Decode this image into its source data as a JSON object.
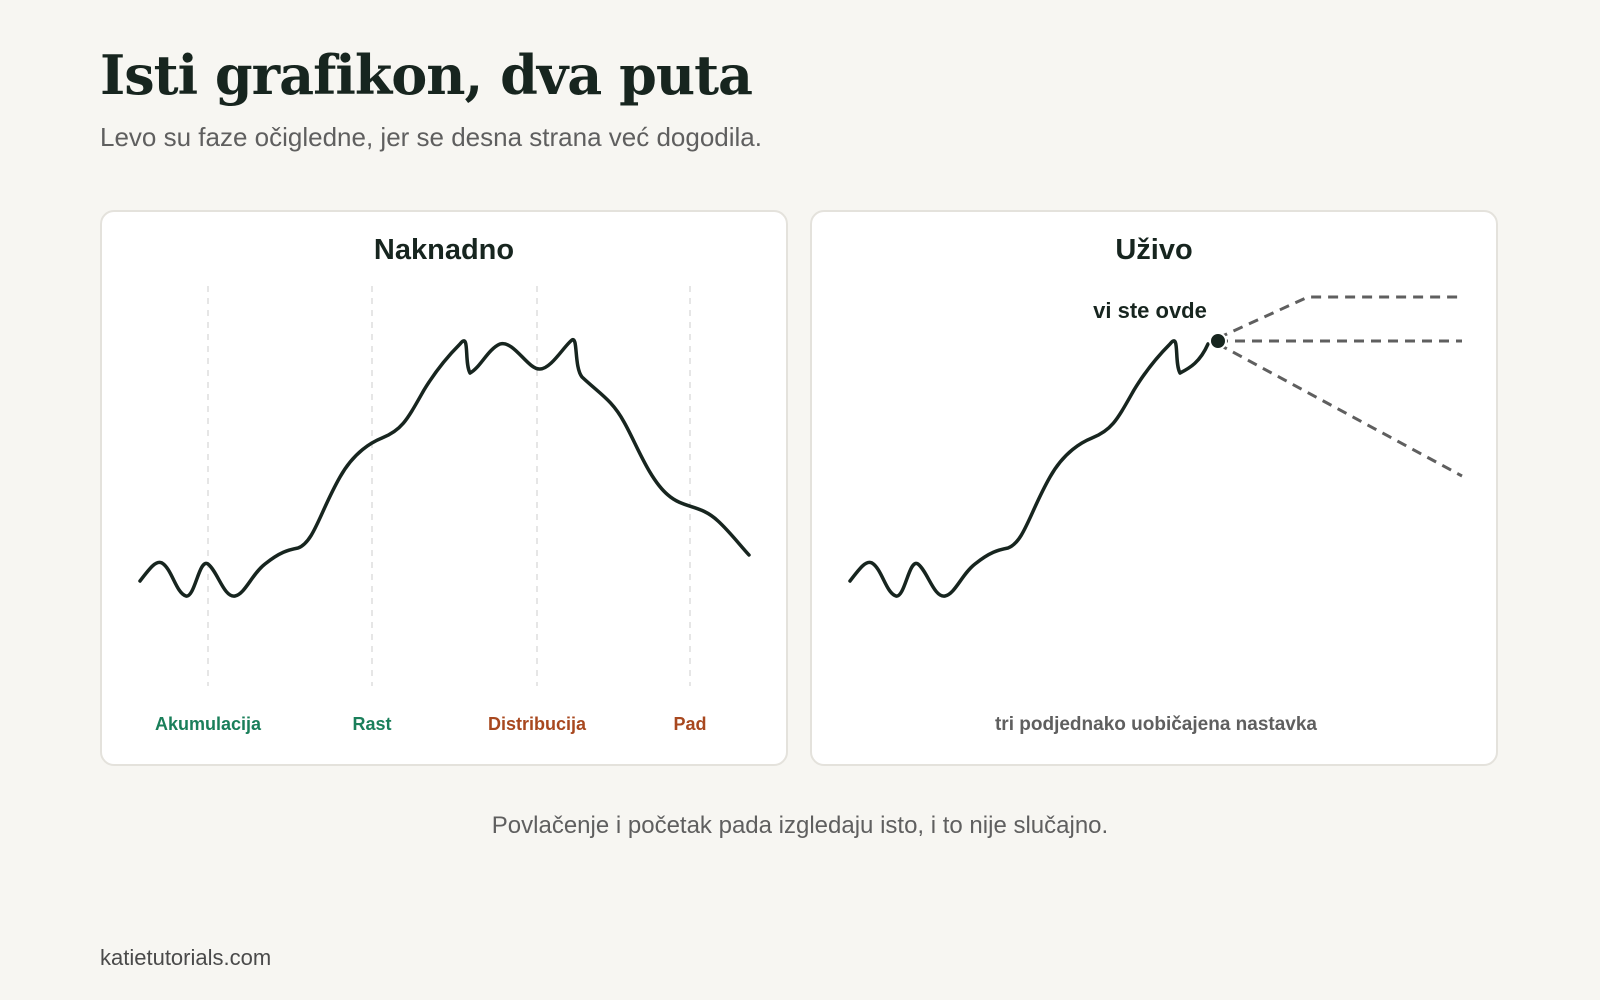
{
  "header": {
    "title": "Isti grafikon, dva puta",
    "subtitle": "Levo su faze očigledne, jer se desna strana već dogodila."
  },
  "panels": {
    "left": {
      "title": "Naknadno",
      "phases": [
        {
          "label": "Akumulacija",
          "color": "#1a7f5a"
        },
        {
          "label": "Rast",
          "color": "#1a7f5a"
        },
        {
          "label": "Distribucija",
          "color": "#a8481f"
        },
        {
          "label": "Pad",
          "color": "#a8481f"
        }
      ]
    },
    "right": {
      "title": "Uživo",
      "marker_label": "vi ste ovde",
      "footer_label": "tri podjednako uobičajena nastavka"
    }
  },
  "caption": "Povlačenje i početak pada izgledaju isto, i to nije slučajno.",
  "footer": "katietutorials.com",
  "colors": {
    "background": "#f7f6f2",
    "line": "#17251f",
    "projection": "#5f5f5f",
    "accumulation_rise": "#1a7f5a",
    "distribution_fall": "#a8481f"
  }
}
